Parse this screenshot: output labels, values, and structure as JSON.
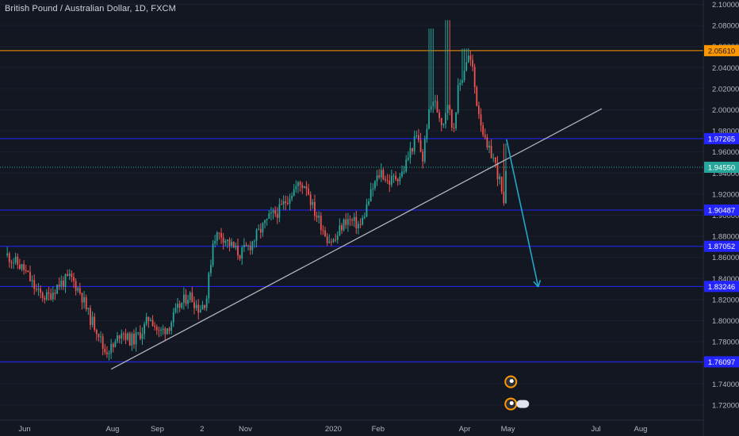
{
  "header": {
    "title": "British Pound / Australian Dollar, 1D, FXCM"
  },
  "colors": {
    "background": "#131722",
    "up": "#26a69a",
    "down": "#ef5350",
    "level_line": "#2424ff",
    "level_label_bg": "#2424ff",
    "orange_line": "#ff9800",
    "current_line": "#26a69a",
    "trend_line": "#b2b5be",
    "arrow": "#22a7c9",
    "axis_text": "#b2b5be"
  },
  "chart_data": {
    "type": "candlestick",
    "title": "British Pound / Australian Dollar, 1D, FXCM",
    "ylim": [
      1.7,
      2.1
    ],
    "y_ticks": [
      "2.10000",
      "2.08000",
      "2.06000",
      "2.04000",
      "2.02000",
      "2.00000",
      "1.98000",
      "1.96000",
      "1.94000",
      "1.92000",
      "1.90000",
      "1.88000",
      "1.86000",
      "1.84000",
      "1.82000",
      "1.80000",
      "1.78000",
      "1.76000",
      "1.74000",
      "1.72000"
    ],
    "x_ticks": [
      "Jun",
      "Aug",
      "Sep",
      "2",
      "Nov",
      "2020",
      "Feb",
      "Apr",
      "May",
      "Jul",
      "Aug"
    ],
    "levels": [
      {
        "value": 2.0561,
        "label": "2.05610",
        "style": "orange"
      },
      {
        "value": 1.97265,
        "label": "1.97265",
        "style": "blue"
      },
      {
        "value": 1.9455,
        "label": "1.94550",
        "style": "current"
      },
      {
        "value": 1.90487,
        "label": "1.90487",
        "style": "blue"
      },
      {
        "value": 1.87052,
        "label": "1.87052",
        "style": "blue"
      },
      {
        "value": 1.83246,
        "label": "1.83246",
        "style": "blue"
      },
      {
        "value": 1.76097,
        "label": "1.76097",
        "style": "blue"
      }
    ],
    "trendline": {
      "from": {
        "date": "2019-07-31",
        "y": 1.754
      },
      "to": {
        "date": "2020-07-05",
        "y": 2.001
      }
    },
    "projection_arrow": {
      "from": {
        "date": "2020-04-30",
        "y": 1.972
      },
      "to": {
        "date": "2020-05-22",
        "y": 1.832
      }
    },
    "price_series": [
      {
        "date": "2019-05-20",
        "y": 1.862
      },
      {
        "date": "2019-06-01",
        "y": 1.848
      },
      {
        "date": "2019-06-10",
        "y": 1.826
      },
      {
        "date": "2019-06-17",
        "y": 1.822
      },
      {
        "date": "2019-06-24",
        "y": 1.834
      },
      {
        "date": "2019-07-03",
        "y": 1.841
      },
      {
        "date": "2019-07-10",
        "y": 1.826
      },
      {
        "date": "2019-07-16",
        "y": 1.803
      },
      {
        "date": "2019-07-22",
        "y": 1.79
      },
      {
        "date": "2019-07-26",
        "y": 1.771
      },
      {
        "date": "2019-08-02",
        "y": 1.775
      },
      {
        "date": "2019-08-07",
        "y": 1.792
      },
      {
        "date": "2019-08-12",
        "y": 1.782
      },
      {
        "date": "2019-08-16",
        "y": 1.782
      },
      {
        "date": "2019-08-22",
        "y": 1.791
      },
      {
        "date": "2019-08-27",
        "y": 1.805
      },
      {
        "date": "2019-09-02",
        "y": 1.788
      },
      {
        "date": "2019-09-09",
        "y": 1.795
      },
      {
        "date": "2019-09-16",
        "y": 1.813
      },
      {
        "date": "2019-09-23",
        "y": 1.825
      },
      {
        "date": "2019-09-30",
        "y": 1.811
      },
      {
        "date": "2019-10-05",
        "y": 1.82
      },
      {
        "date": "2019-10-10",
        "y": 1.88
      },
      {
        "date": "2019-10-15",
        "y": 1.882
      },
      {
        "date": "2019-10-21",
        "y": 1.873
      },
      {
        "date": "2019-10-28",
        "y": 1.863
      },
      {
        "date": "2019-11-04",
        "y": 1.871
      },
      {
        "date": "2019-11-11",
        "y": 1.885
      },
      {
        "date": "2019-11-18",
        "y": 1.898
      },
      {
        "date": "2019-11-25",
        "y": 1.905
      },
      {
        "date": "2019-12-02",
        "y": 1.92
      },
      {
        "date": "2019-12-07",
        "y": 1.928
      },
      {
        "date": "2019-12-13",
        "y": 1.93
      },
      {
        "date": "2019-12-18",
        "y": 1.906
      },
      {
        "date": "2019-12-23",
        "y": 1.893
      },
      {
        "date": "2019-12-28",
        "y": 1.878
      },
      {
        "date": "2020-01-02",
        "y": 1.875
      },
      {
        "date": "2020-01-06",
        "y": 1.888
      },
      {
        "date": "2020-01-10",
        "y": 1.896
      },
      {
        "date": "2020-01-15",
        "y": 1.893
      },
      {
        "date": "2020-01-20",
        "y": 1.89
      },
      {
        "date": "2020-01-24",
        "y": 1.908
      },
      {
        "date": "2020-01-29",
        "y": 1.928
      },
      {
        "date": "2020-02-03",
        "y": 1.942
      },
      {
        "date": "2020-02-08",
        "y": 1.931
      },
      {
        "date": "2020-02-13",
        "y": 1.936
      },
      {
        "date": "2020-02-18",
        "y": 1.94
      },
      {
        "date": "2020-02-23",
        "y": 1.96
      },
      {
        "date": "2020-02-28",
        "y": 1.975
      },
      {
        "date": "2020-03-03",
        "y": 1.953
      },
      {
        "date": "2020-03-06",
        "y": 1.988
      },
      {
        "date": "2020-03-10",
        "y": 2.01
      },
      {
        "date": "2020-03-13",
        "y": 2.0
      },
      {
        "date": "2020-03-17",
        "y": 1.986
      },
      {
        "date": "2020-03-20",
        "y": 2.01
      },
      {
        "date": "2020-03-24",
        "y": 1.978
      },
      {
        "date": "2020-03-27",
        "y": 2.016
      },
      {
        "date": "2020-03-31",
        "y": 2.035
      },
      {
        "date": "2020-04-03",
        "y": 2.052
      },
      {
        "date": "2020-04-06",
        "y": 2.043
      },
      {
        "date": "2020-04-09",
        "y": 2.01
      },
      {
        "date": "2020-04-13",
        "y": 1.985
      },
      {
        "date": "2020-04-16",
        "y": 1.962
      },
      {
        "date": "2020-04-20",
        "y": 1.958
      },
      {
        "date": "2020-04-23",
        "y": 1.944
      },
      {
        "date": "2020-04-26",
        "y": 1.928
      },
      {
        "date": "2020-04-28",
        "y": 1.904
      },
      {
        "date": "2020-04-30",
        "y": 1.946
      }
    ]
  }
}
